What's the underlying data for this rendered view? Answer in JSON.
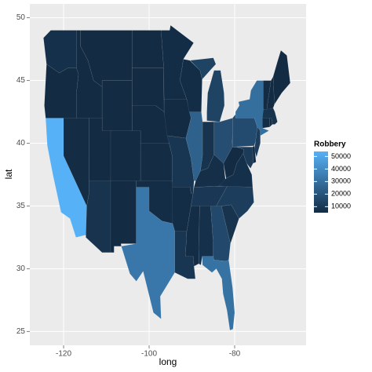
{
  "chart_data": {
    "type": "map",
    "x_label": "long",
    "y_label": "lat",
    "xlim": [
      -127.9,
      -63.3
    ],
    "ylim": [
      23.9,
      51.1
    ],
    "xticks": [
      -120,
      -100,
      -80
    ],
    "yticks": [
      25,
      30,
      35,
      40,
      45,
      50
    ],
    "grid": true,
    "values": [
      7000,
      5500,
      54000,
      5600,
      5200,
      5200,
      5200,
      5300,
      8000,
      5500,
      5500,
      5200,
      5200,
      5500,
      5600,
      6000,
      33000,
      6000,
      5300,
      9000,
      6000,
      9000,
      6000,
      25000,
      14000,
      14000,
      8000,
      18000,
      6500,
      10000,
      6000,
      7000,
      16000,
      31000,
      8000,
      12000,
      7000,
      5400,
      11000,
      5400,
      17000,
      12000,
      30000,
      6000,
      5300,
      8000,
      5200,
      5200,
      5300
    ],
    "colorbar": {
      "title": "Robbery",
      "ticks": [
        10000,
        20000,
        30000,
        40000,
        50000
      ],
      "low": "#132B43",
      "high": "#56B1F7"
    }
  }
}
